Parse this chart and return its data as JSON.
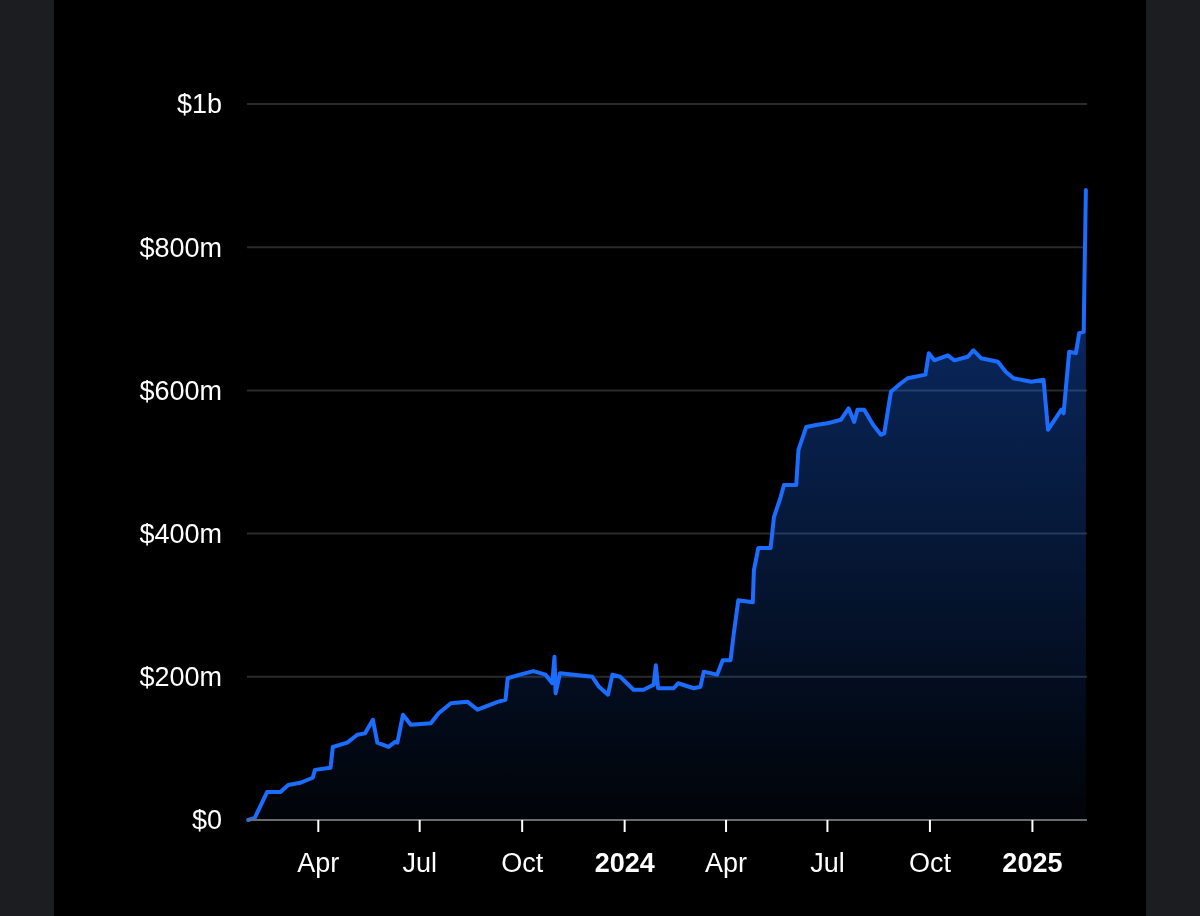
{
  "chart_data": {
    "type": "area",
    "x": [
      "2023-01-28",
      "2023-02-03",
      "2023-02-14",
      "2023-02-26",
      "2023-03-05",
      "2023-03-16",
      "2023-03-27",
      "2023-03-29",
      "2023-04-12",
      "2023-04-14",
      "2023-04-27",
      "2023-05-06",
      "2023-05-13",
      "2023-05-20",
      "2023-05-24",
      "2023-06-03",
      "2023-06-09",
      "2023-06-11",
      "2023-06-16",
      "2023-06-23",
      "2023-07-11",
      "2023-07-18",
      "2023-07-29",
      "2023-08-13",
      "2023-08-22",
      "2023-09-09",
      "2023-09-16",
      "2023-09-18",
      "2023-09-29",
      "2023-10-11",
      "2023-10-22",
      "2023-10-28",
      "2023-10-30",
      "2023-10-31",
      "2023-11-04",
      "2023-12-03",
      "2023-12-09",
      "2023-12-17",
      "2023-12-21",
      "2023-12-28",
      "2024-01-09",
      "2024-01-18",
      "2024-01-27",
      "2024-01-29",
      "2024-01-31",
      "2024-02-14",
      "2024-02-18",
      "2024-03-03",
      "2024-03-09",
      "2024-03-12",
      "2024-03-24",
      "2024-03-29",
      "2024-04-05",
      "2024-04-08",
      "2024-04-12",
      "2024-04-25",
      "2024-04-26",
      "2024-04-30",
      "2024-05-11",
      "2024-05-14",
      "2024-05-20",
      "2024-05-23",
      "2024-06-03",
      "2024-06-05",
      "2024-06-12",
      "2024-06-22",
      "2024-07-01",
      "2024-07-13",
      "2024-07-20",
      "2024-07-25",
      "2024-07-28",
      "2024-08-03",
      "2024-08-11",
      "2024-08-18",
      "2024-08-21",
      "2024-08-27",
      "2024-09-05",
      "2024-09-11",
      "2024-09-27",
      "2024-09-30",
      "2024-10-05",
      "2024-10-17",
      "2024-10-23",
      "2024-11-04",
      "2024-11-09",
      "2024-11-16",
      "2024-12-01",
      "2024-12-08",
      "2024-12-15",
      "2024-12-31",
      "2025-01-11",
      "2025-01-15",
      "2025-01-27",
      "2025-01-29",
      "2025-02-03",
      "2025-02-09",
      "2025-02-12",
      "2025-02-16",
      "2025-02-18"
    ],
    "series": [
      {
        "color": "#1a6dff",
        "values": [
          0,
          3000000.0,
          39000000.0,
          39000000.0,
          49000000.0,
          52000000.0,
          59000000.0,
          70000000.0,
          73000000.0,
          102000000.0,
          108000000.0,
          119000000.0,
          121000000.0,
          140000000.0,
          108000000.0,
          102000000.0,
          109000000.0,
          108000000.0,
          147000000.0,
          133000000.0,
          135000000.0,
          149000000.0,
          163000000.0,
          165000000.0,
          154000000.0,
          165000000.0,
          168000000.0,
          198000000.0,
          203000000.0,
          208000000.0,
          203000000.0,
          191000000.0,
          228000000.0,
          177000000.0,
          205000000.0,
          200000000.0,
          186000000.0,
          175000000.0,
          203000000.0,
          200000000.0,
          182000000.0,
          182000000.0,
          189000000.0,
          216000000.0,
          184000000.0,
          184000000.0,
          191000000.0,
          184000000.0,
          186000000.0,
          207000000.0,
          203000000.0,
          223000000.0,
          223000000.0,
          261000000.0,
          307000000.0,
          304000000.0,
          349000000.0,
          380000000.0,
          380000000.0,
          423000000.0,
          451000000.0,
          468000000.0,
          468000000.0,
          517000000.0,
          549000000.0,
          552000000.0,
          554000000.0,
          559000000.0,
          575000000.0,
          556000000.0,
          573000000.0,
          573000000.0,
          552000000.0,
          538000000.0,
          540000000.0,
          598000000.0,
          610000000.0,
          617000000.0,
          622000000.0,
          652000000.0,
          642000000.0,
          649000000.0,
          642000000.0,
          647000000.0,
          656000000.0,
          645000000.0,
          640000000.0,
          626000000.0,
          617000000.0,
          612000000.0,
          615000000.0,
          545000000.0,
          573000000.0,
          568000000.0,
          654000000.0,
          652000000.0,
          680000000.0,
          682000000.0,
          880000000.0
        ]
      }
    ],
    "xlim": [
      "2023-01-27",
      "2025-02-19"
    ],
    "xticks": [
      {
        "value": "2023-04-01",
        "label": "Apr"
      },
      {
        "value": "2023-07-01",
        "label": "Jul"
      },
      {
        "value": "2023-10-01",
        "label": "Oct"
      },
      {
        "value": "2024-01-01",
        "label": "2024"
      },
      {
        "value": "2024-04-01",
        "label": "Apr"
      },
      {
        "value": "2024-07-01",
        "label": "Jul"
      },
      {
        "value": "2024-10-01",
        "label": "Oct"
      },
      {
        "value": "2025-01-01",
        "label": "2025"
      }
    ],
    "ylim": [
      0,
      1000000000.0
    ],
    "yticks": [
      {
        "value": 0,
        "label": "$0"
      },
      {
        "value": 200000000.0,
        "label": "$200m"
      },
      {
        "value": 400000000.0,
        "label": "$400m"
      },
      {
        "value": 600000000.0,
        "label": "$600m"
      },
      {
        "value": 800000000.0,
        "label": "$800m"
      },
      {
        "value": 1000000000.0,
        "label": "$1b"
      }
    ],
    "grid": "y"
  }
}
